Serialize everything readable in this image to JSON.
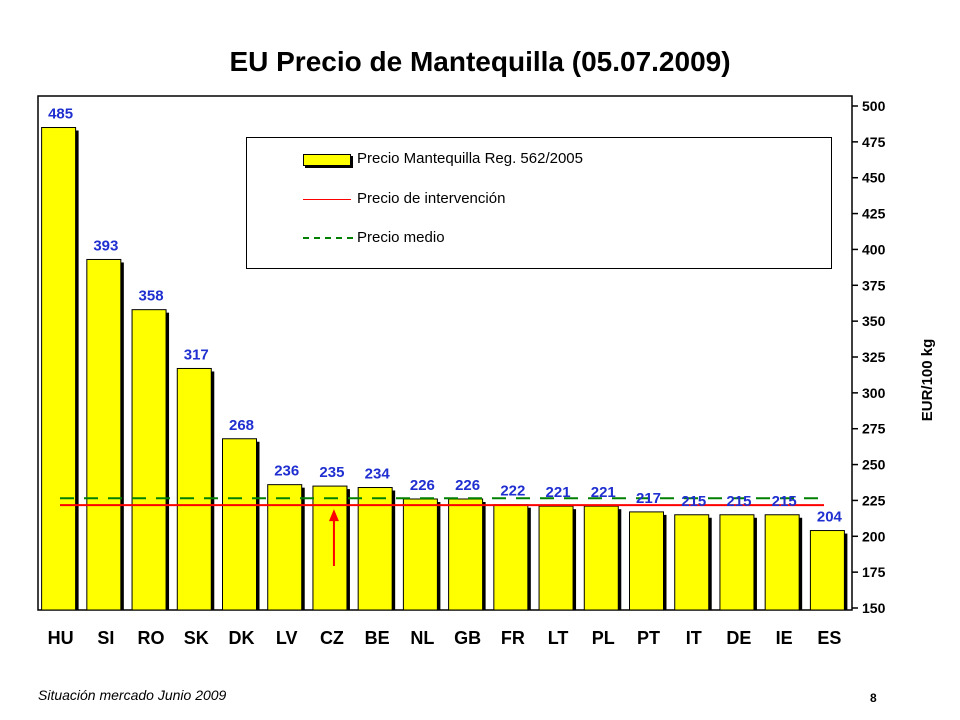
{
  "chart_data": {
    "type": "bar",
    "title": "EU Precio de Mantequilla (05.07.2009)",
    "ylabel": "EUR/100 kg",
    "ylim": [
      150,
      500
    ],
    "yticks": [
      150,
      175,
      200,
      225,
      250,
      275,
      300,
      325,
      350,
      375,
      400,
      425,
      450,
      475,
      500
    ],
    "categories": [
      "HU",
      "SI",
      "RO",
      "SK",
      "DK",
      "LV",
      "CZ",
      "BE",
      "NL",
      "GB",
      "FR",
      "LT",
      "PL",
      "PT",
      "IT",
      "DE",
      "IE",
      "ES"
    ],
    "values": [
      485,
      393,
      358,
      317,
      268,
      236,
      235,
      234,
      226,
      226,
      222,
      221,
      221,
      217,
      215,
      215,
      215,
      204
    ],
    "data_labels": [
      "485",
      "393",
      "358",
      "317",
      "268",
      "236",
      "235",
      "234",
      "226",
      "226",
      "222",
      "221",
      "221",
      "217",
      "215",
      "215",
      "215",
      "204"
    ],
    "lines": [
      {
        "name": "Precio de intervención",
        "value": 221.75,
        "style": "solid",
        "color": "#ff0000"
      },
      {
        "name": "Precio medio",
        "value": 226.5,
        "style": "dashed",
        "color": "#008000"
      }
    ],
    "legend": {
      "position": "top-right",
      "entries": [
        "Precio Mantequilla Reg. 562/2005",
        "Precio de intervención",
        "Precio medio"
      ]
    },
    "grid": false,
    "bar_color": "#ffff00",
    "label_color": "#1f2fd0",
    "arrow_color": "#ff0000",
    "arrow_category": "CZ"
  },
  "footer": {
    "source": "Situación mercado Junio 2009",
    "page_number": "8"
  }
}
